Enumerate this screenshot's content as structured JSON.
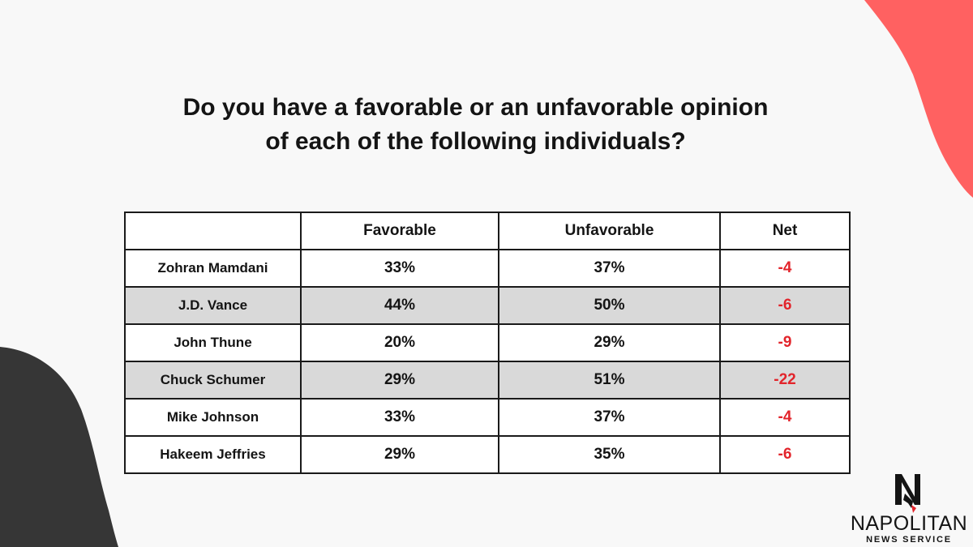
{
  "colors": {
    "background": "#f8f8f8",
    "accent_blob": "#ff6161",
    "dark_blob": "#363636",
    "shaded_row": "#d9d9d9",
    "net_negative": "#e2242b",
    "text": "#141414"
  },
  "title": {
    "line1": "Do you have a favorable or an unfavorable opinion",
    "line2": "of each of the following individuals?"
  },
  "table": {
    "headers": [
      "",
      "Favorable",
      "Unfavorable",
      "Net"
    ],
    "rows": [
      {
        "name": "Zohran Mamdani",
        "favorable": "33%",
        "unfavorable": "37%",
        "net": "-4"
      },
      {
        "name": "J.D. Vance",
        "favorable": "44%",
        "unfavorable": "50%",
        "net": "-6"
      },
      {
        "name": "John Thune",
        "favorable": "20%",
        "unfavorable": "29%",
        "net": "-9"
      },
      {
        "name": "Chuck Schumer",
        "favorable": "29%",
        "unfavorable": "51%",
        "net": "-22"
      },
      {
        "name": "Mike Johnson",
        "favorable": "33%",
        "unfavorable": "37%",
        "net": "-4"
      },
      {
        "name": "Hakeem Jeffries",
        "favorable": "29%",
        "unfavorable": "35%",
        "net": "-6"
      }
    ]
  },
  "chart_data": {
    "type": "table",
    "title": "Do you have a favorable or an unfavorable opinion of each of the following individuals?",
    "columns": [
      "Favorable",
      "Unfavorable",
      "Net"
    ],
    "categories": [
      "Zohran Mamdani",
      "J.D. Vance",
      "John Thune",
      "Chuck Schumer",
      "Mike Johnson",
      "Hakeem Jeffries"
    ],
    "series": [
      {
        "name": "Favorable",
        "values": [
          33,
          44,
          20,
          29,
          33,
          29
        ]
      },
      {
        "name": "Unfavorable",
        "values": [
          37,
          50,
          29,
          51,
          37,
          35
        ]
      },
      {
        "name": "Net",
        "values": [
          -4,
          -6,
          -9,
          -22,
          -4,
          -6
        ]
      }
    ]
  },
  "logo": {
    "name": "NAPOLITAN",
    "subtitle": "NEWS SERVICE",
    "icon": "napolitan-n-eagle-icon"
  }
}
